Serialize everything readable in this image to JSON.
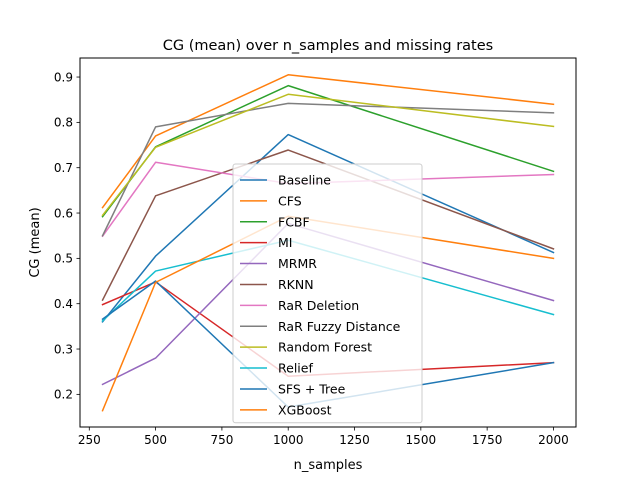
{
  "chart_data": {
    "type": "line",
    "title": "CG (mean) over n_samples and missing rates",
    "xlabel": "n_samples",
    "ylabel": "CG (mean)",
    "xlim": [
      215,
      2085
    ],
    "ylim": [
      0.128,
      0.942
    ],
    "xticks": [
      250,
      500,
      750,
      1000,
      1250,
      1500,
      1750,
      2000
    ],
    "xtick_labels": [
      "250",
      "500",
      "750",
      "1000",
      "1250",
      "1500",
      "1750",
      "2000"
    ],
    "yticks": [
      0.2,
      0.3,
      0.4,
      0.5,
      0.6,
      0.7,
      0.8,
      0.9
    ],
    "ytick_labels": [
      "0.2",
      "0.3",
      "0.4",
      "0.5",
      "0.6",
      "0.7",
      "0.8",
      "0.9"
    ],
    "grid": false,
    "legend_position": "center",
    "x": [
      300,
      500,
      1000,
      2000
    ],
    "series": [
      {
        "name": "Baseline",
        "color": "#1f77b4",
        "values": [
          0.36,
          0.505,
          0.773,
          0.513
        ]
      },
      {
        "name": "CFS",
        "color": "#ff7f0e",
        "values": [
          0.612,
          0.77,
          0.905,
          0.84
        ]
      },
      {
        "name": "FCBF",
        "color": "#2ca02c",
        "values": [
          0.592,
          0.746,
          0.881,
          0.692
        ]
      },
      {
        "name": "MI",
        "color": "#d62728",
        "values": [
          0.398,
          0.448,
          0.24,
          0.27
        ]
      },
      {
        "name": "MRMR",
        "color": "#9467bd",
        "values": [
          0.222,
          0.28,
          0.577,
          0.407
        ]
      },
      {
        "name": "RKNN",
        "color": "#8c564b",
        "values": [
          0.408,
          0.638,
          0.739,
          0.521
        ]
      },
      {
        "name": "RaR Deletion",
        "color": "#e377c2",
        "values": [
          0.549,
          0.712,
          0.665,
          0.685
        ]
      },
      {
        "name": "RaR Fuzzy Distance",
        "color": "#7f7f7f",
        "values": [
          0.55,
          0.79,
          0.842,
          0.821
        ]
      },
      {
        "name": "Random Forest",
        "color": "#bcbd22",
        "values": [
          0.595,
          0.745,
          0.862,
          0.791
        ]
      },
      {
        "name": "Relief",
        "color": "#17becf",
        "values": [
          0.362,
          0.472,
          0.54,
          0.376
        ]
      },
      {
        "name": "SFS + Tree",
        "color": "#1f77b4",
        "values": [
          0.366,
          0.45,
          0.172,
          0.27
        ]
      },
      {
        "name": "XGBoost",
        "color": "#ff7f0e",
        "values": [
          0.164,
          0.447,
          0.593,
          0.5
        ]
      }
    ]
  }
}
